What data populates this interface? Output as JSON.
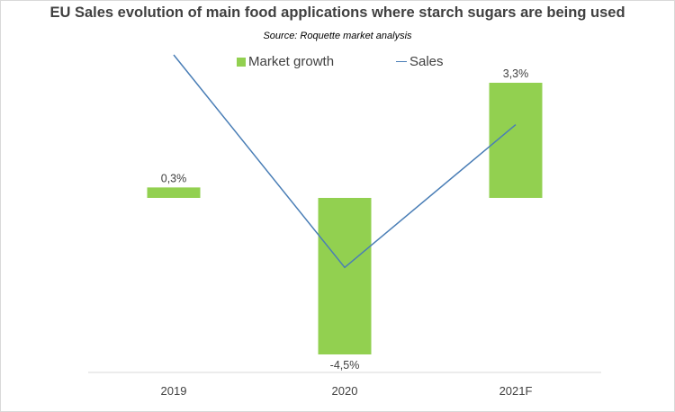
{
  "title": "EU Sales evolution of main food applications where starch sugars are being used",
  "subtitle": "Source: Roquette market analysis",
  "legend": {
    "bar_label": "Market growth",
    "line_label": "Sales"
  },
  "colors": {
    "bar": "#92d050",
    "line": "#4a7eb6"
  },
  "chart_data": {
    "type": "bar",
    "categories": [
      "2019",
      "2020",
      "2021F"
    ],
    "series": [
      {
        "name": "Market growth",
        "type": "bar",
        "values": [
          0.3,
          -4.5,
          3.3
        ],
        "data_labels": [
          "0,3%",
          "-4,5%",
          "3,3%"
        ]
      },
      {
        "name": "Sales",
        "type": "line",
        "values": [
          4.1,
          -2.0,
          2.1
        ]
      }
    ],
    "ylim": [
      -5.0,
      4.6
    ],
    "grid": false,
    "legend_position": "top"
  }
}
